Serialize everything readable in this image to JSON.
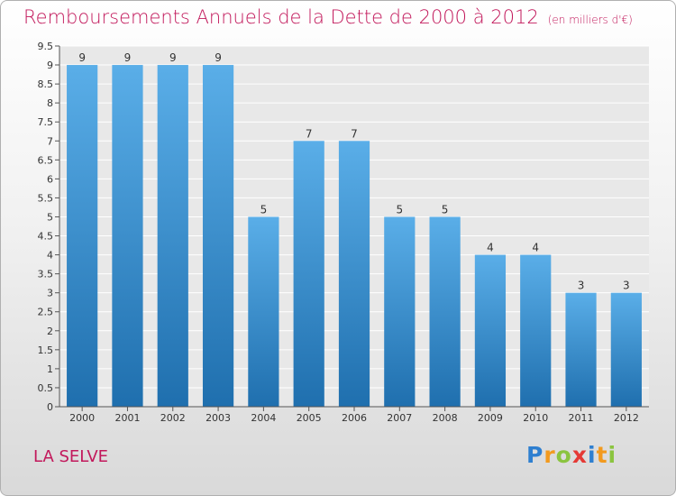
{
  "chart_data": {
    "type": "bar",
    "title": "Remboursements Annuels de la Dette de 2000 à 2012",
    "unit_note": "(en milliers d'€)",
    "categories": [
      "2000",
      "2001",
      "2002",
      "2003",
      "2004",
      "2005",
      "2006",
      "2007",
      "2008",
      "2009",
      "2010",
      "2011",
      "2012"
    ],
    "values": [
      9,
      9,
      9,
      9,
      5,
      7,
      7,
      5,
      5,
      4,
      4,
      3,
      3
    ],
    "ylim": [
      0,
      9.5
    ],
    "yticks": [
      0,
      0.5,
      1,
      1.5,
      2,
      2.5,
      3,
      3.5,
      4,
      4.5,
      5,
      5.5,
      6,
      6.5,
      7,
      7.5,
      8,
      8.5,
      9,
      9.5
    ],
    "grid": true,
    "bar_color_top": "#5aaee8",
    "bar_color_bottom": "#1f6fae"
  },
  "commune": "LA SELVE",
  "logo": {
    "letters": [
      "P",
      "r",
      "o",
      "x",
      "i",
      "t",
      "i"
    ]
  }
}
